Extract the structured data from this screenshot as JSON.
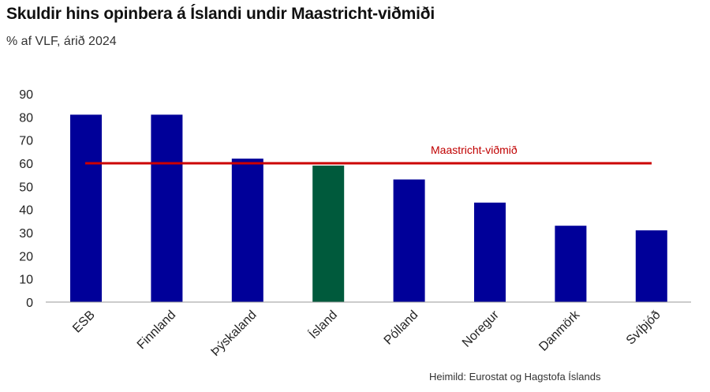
{
  "header": {
    "title": "Skuldir hins opinbera á Íslandi undir Maastricht-viðmiði",
    "subtitle": "% af VLF, árið 2024"
  },
  "footer": {
    "source": "Heimild: Eurostat og Hagstofa Íslands"
  },
  "colors": {
    "default_bar": "#000099",
    "highlight_bar": "#005a3c",
    "reference_line": "#cc0000",
    "axis": "#999999"
  },
  "chart_data": {
    "type": "bar",
    "title": "Skuldir hins opinbera á Íslandi undir Maastricht-viðmiði",
    "subtitle": "% af VLF, árið 2024",
    "xlabel": "",
    "ylabel": "",
    "categories": [
      "ESB",
      "Finnland",
      "Þýskaland",
      "Ísland",
      "Pólland",
      "Noregur",
      "Danmörk",
      "Svíþjóð"
    ],
    "values": [
      81,
      81,
      62,
      59,
      53,
      43,
      33,
      31
    ],
    "highlight": "Ísland",
    "ylim": [
      0,
      90
    ],
    "yticks": [
      0,
      10,
      20,
      30,
      40,
      50,
      60,
      70,
      80,
      90
    ],
    "grid": false,
    "reference_line": {
      "value": 60,
      "label": "Maastricht-viðmið"
    }
  }
}
